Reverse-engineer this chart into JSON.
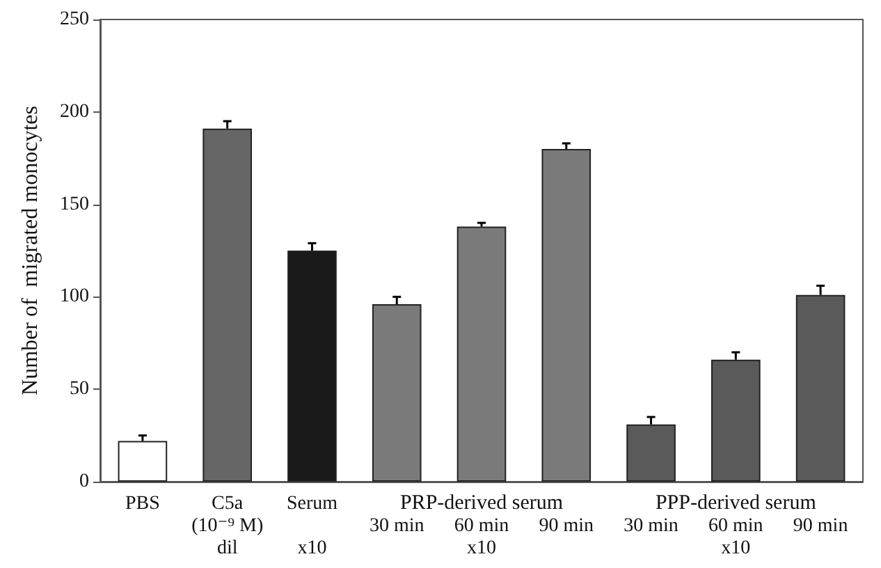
{
  "chart_data": {
    "type": "bar",
    "ylabel": "Number of  migrated monocytes",
    "categories": [
      "PBS",
      "C5a\n(10⁻⁹ M)\ndil",
      "Serum\n\nx10",
      "30 min",
      "60 min\nx10",
      "90 min",
      "30 min",
      "60 min\nx10",
      "90 min"
    ],
    "values": [
      22,
      191,
      125,
      96,
      138,
      180,
      31,
      66,
      101
    ],
    "errors": [
      3,
      4,
      4,
      4,
      2,
      3,
      4,
      4,
      5
    ],
    "colors": [
      "#ffffff",
      "#666666",
      "#1a1a1a",
      "#7a7a7a",
      "#7a7a7a",
      "#7a7a7a",
      "#5a5a5a",
      "#5a5a5a",
      "#5a5a5a"
    ],
    "annotations": [
      "PRP-derived serum",
      "PPP-derived serum"
    ],
    "ylim": [
      0,
      250
    ],
    "yticks": [
      0,
      50,
      100,
      150,
      200,
      250
    ]
  }
}
